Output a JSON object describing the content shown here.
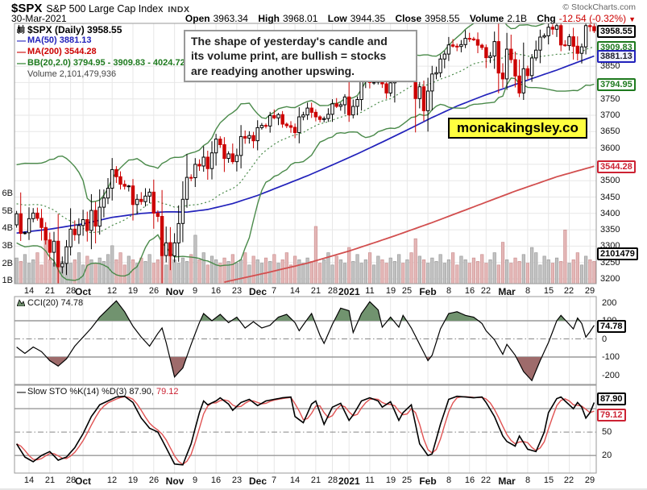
{
  "header": {
    "symbol": "$SPX",
    "name": "S&P 500 Large Cap Index",
    "exchange": "INDX",
    "copyright": "© StockCharts.com",
    "date": "30-Mar-2021",
    "quote": {
      "open_label": "Open",
      "open": "3963.34",
      "high_label": "High",
      "high": "3968.01",
      "low_label": "Low",
      "low": "3944.35",
      "close_label": "Close",
      "close": "3958.55",
      "volume_label": "Volume",
      "volume": "2.1B",
      "chg_label": "Chg",
      "chg": "-12.54 (-0.32%)",
      "down_arrow": "▼"
    }
  },
  "legend": {
    "price": "$SPX (Daily) 3958.55",
    "ma50": "MA(50) 3881.13",
    "ma200": "MA(200) 3544.28",
    "bb": "BB(20,2.0) 3794.95 - 3909.83 - 4024.72",
    "volume": "Volume 2,101,479,936",
    "dash": "—"
  },
  "annotation": {
    "lines": [
      "The shape of yesterday's candle and",
      "its volume print, are bullish = stocks",
      "are readying another upswing."
    ]
  },
  "watermark": "monicakingsley.co",
  "colors": {
    "up_stroke": "#000000",
    "down_body": "#cc0000",
    "ma50": "#2222bb",
    "ma200": "#d24f4f",
    "bb": "#4a8a4a",
    "vol_up": "#c2c2c2",
    "vol_up_edge": "#9a9a9a",
    "vol_down": "#e4b7b7",
    "vol_down_edge": "#cc8f8f",
    "cci_fill_up": "#71936f",
    "cci_fill_down": "#9e6b6b",
    "sto_k": "#000000",
    "sto_d": "#e05252",
    "grid": "#e7e7e7",
    "panel_border": "#999999"
  },
  "chart_data": {
    "type": "candlestick",
    "symbol": "$SPX",
    "timeframe": "daily",
    "date_range": "14-Sep-2020 to 30-Mar-2021 (approx, 140 sessions)",
    "panels": [
      "price+volume+MA50+MA200+BB(20,2.0)",
      "CCI(20)",
      "Slow STO %K(14) %D(3)"
    ],
    "x_tick_labels": [
      {
        "label": "14",
        "day": 3,
        "bold": false
      },
      {
        "label": "21",
        "day": 8,
        "bold": false
      },
      {
        "label": "28",
        "day": 13,
        "bold": false
      },
      {
        "label": "Oct",
        "day": 16,
        "bold": true
      },
      {
        "label": "12",
        "day": 23,
        "bold": false
      },
      {
        "label": "19",
        "day": 28,
        "bold": false
      },
      {
        "label": "26",
        "day": 33,
        "bold": false
      },
      {
        "label": "Nov",
        "day": 38,
        "bold": true
      },
      {
        "label": "9",
        "day": 43,
        "bold": false
      },
      {
        "label": "16",
        "day": 48,
        "bold": false
      },
      {
        "label": "23",
        "day": 53,
        "bold": false
      },
      {
        "label": "Dec",
        "day": 58,
        "bold": true
      },
      {
        "label": "7",
        "day": 62,
        "bold": false
      },
      {
        "label": "14",
        "day": 67,
        "bold": false
      },
      {
        "label": "21",
        "day": 72,
        "bold": false
      },
      {
        "label": "28",
        "day": 76,
        "bold": false
      },
      {
        "label": "2021",
        "day": 80,
        "bold": true
      },
      {
        "label": "11",
        "day": 85,
        "bold": false
      },
      {
        "label": "19",
        "day": 90,
        "bold": false
      },
      {
        "label": "25",
        "day": 94,
        "bold": false
      },
      {
        "label": "Feb",
        "day": 99,
        "bold": true
      },
      {
        "label": "8",
        "day": 104,
        "bold": false
      },
      {
        "label": "16",
        "day": 109,
        "bold": false
      },
      {
        "label": "22",
        "day": 113,
        "bold": false
      },
      {
        "label": "Mar",
        "day": 118,
        "bold": true
      },
      {
        "label": "8",
        "day": 123,
        "bold": false
      },
      {
        "label": "15",
        "day": 128,
        "bold": false
      },
      {
        "label": "22",
        "day": 133,
        "bold": false
      },
      {
        "label": "29",
        "day": 138,
        "bold": false
      }
    ],
    "price_axis": {
      "visible_ticks": [
        3850,
        3750,
        3700,
        3650,
        3600,
        3500,
        3450,
        3400,
        3350,
        3300,
        3250,
        3200
      ],
      "tags": [
        {
          "value": 3958.55,
          "text": "3958.55",
          "style": "black"
        },
        {
          "value": 3909.83,
          "text": "3909.83",
          "style": "green"
        },
        {
          "value": 3881.13,
          "text": "3881.13",
          "style": "blue"
        },
        {
          "value": 3794.95,
          "text": "3794.95",
          "style": "green"
        },
        {
          "value": 3544.28,
          "text": "3544.28",
          "style": "red"
        }
      ]
    },
    "volume_axis": {
      "ticks_b": [
        6,
        5,
        4,
        3,
        2,
        1
      ],
      "tag_text": "2101479",
      "last_volume": 2101479936
    },
    "closes": [
      3399,
      3339,
      3341,
      3384,
      3401,
      3385,
      3357,
      3319,
      3281,
      3315,
      3237,
      3247,
      3298,
      3352,
      3335,
      3363,
      3381,
      3348,
      3409,
      3361,
      3419,
      3447,
      3477,
      3534,
      3512,
      3489,
      3483,
      3484,
      3427,
      3443,
      3436,
      3453,
      3465,
      3401,
      3391,
      3271,
      3310,
      3270,
      3310,
      3369,
      3443,
      3510,
      3509,
      3550,
      3545,
      3572,
      3537,
      3585,
      3627,
      3610,
      3568,
      3582,
      3558,
      3577,
      3635,
      3630,
      3638,
      3622,
      3662,
      3669,
      3667,
      3699,
      3692,
      3702,
      3673,
      3668,
      3663,
      3647,
      3695,
      3701,
      3722,
      3709,
      3695,
      3687,
      3690,
      3703,
      3735,
      3727,
      3732,
      3756,
      3701,
      3727,
      3748,
      3804,
      3825,
      3800,
      3801,
      3810,
      3796,
      3768,
      3799,
      3852,
      3853,
      3841,
      3855,
      3850,
      3751,
      3787,
      3714,
      3774,
      3826,
      3830,
      3872,
      3887,
      3915,
      3911,
      3910,
      3916,
      3935,
      3933,
      3931,
      3914,
      3907,
      3876,
      3881,
      3925,
      3829,
      3811,
      3902,
      3870,
      3820,
      3768,
      3842,
      3821,
      3875,
      3899,
      3939,
      3943,
      3969,
      3963,
      3974,
      3915,
      3913,
      3940,
      3911,
      3889,
      3909,
      3974,
      3971,
      3958.55
    ],
    "volumes_b": [
      2.3,
      2.1,
      2.5,
      2.0,
      2.2,
      2.6,
      1.9,
      4.0,
      2.2,
      2.0,
      2.3,
      2.1,
      2.5,
      2.0,
      2.2,
      2.6,
      1.9,
      2.4,
      2.2,
      2.0,
      2.3,
      2.1,
      2.5,
      3.0,
      2.2,
      2.6,
      1.9,
      2.4,
      2.2,
      2.0,
      2.3,
      2.1,
      2.5,
      2.0,
      2.2,
      2.6,
      1.9,
      3.2,
      2.2,
      2.0,
      2.3,
      2.1,
      2.5,
      3.6,
      2.2,
      2.6,
      1.9,
      2.4,
      2.2,
      2.0,
      2.3,
      2.1,
      2.5,
      2.0,
      2.2,
      2.6,
      1.9,
      2.4,
      2.2,
      2.0,
      2.3,
      2.1,
      2.5,
      2.0,
      2.2,
      2.6,
      1.9,
      2.4,
      2.2,
      2.0,
      2.3,
      2.1,
      4.1,
      2.0,
      2.2,
      2.6,
      1.9,
      2.4,
      2.2,
      2.0,
      2.9,
      2.1,
      2.5,
      2.0,
      2.2,
      2.6,
      1.9,
      2.4,
      2.2,
      2.0,
      2.3,
      2.1,
      2.5,
      2.0,
      2.2,
      2.6,
      3.4,
      2.4,
      2.2,
      2.0,
      2.3,
      2.1,
      2.5,
      2.0,
      2.2,
      2.6,
      1.9,
      2.4,
      2.2,
      2.0,
      2.3,
      2.1,
      2.5,
      2.0,
      2.2,
      2.6,
      1.9,
      3.2,
      2.2,
      2.0,
      2.3,
      2.1,
      2.5,
      2.0,
      2.9,
      2.6,
      1.9,
      2.4,
      2.2,
      2.0,
      2.3,
      2.1,
      3.9,
      2.0,
      2.2,
      2.6,
      1.9,
      2.4,
      2.2,
      2.1
    ],
    "prehistory_closes": [
      3360,
      3380,
      3375,
      3373,
      3382,
      3390,
      3385,
      3397,
      3402,
      3415,
      3425,
      3443,
      3465,
      3478,
      3484,
      3500,
      3526,
      3580,
      3455,
      3332
    ],
    "ma50_anchors": [
      [
        0,
        3340
      ],
      [
        8,
        3352
      ],
      [
        16,
        3368
      ],
      [
        23,
        3388
      ],
      [
        30,
        3400
      ],
      [
        36,
        3405
      ],
      [
        41,
        3404
      ],
      [
        46,
        3412
      ],
      [
        52,
        3430
      ],
      [
        58,
        3455
      ],
      [
        64,
        3485
      ],
      [
        70,
        3515
      ],
      [
        76,
        3548
      ],
      [
        82,
        3582
      ],
      [
        88,
        3618
      ],
      [
        94,
        3655
      ],
      [
        100,
        3693
      ],
      [
        106,
        3728
      ],
      [
        112,
        3758
      ],
      [
        118,
        3785
      ],
      [
        124,
        3812
      ],
      [
        130,
        3838
      ],
      [
        135,
        3862
      ],
      [
        139,
        3881.13
      ]
    ],
    "ma200_anchors": [
      [
        50,
        3190
      ],
      [
        60,
        3218
      ],
      [
        70,
        3248
      ],
      [
        80,
        3285
      ],
      [
        90,
        3327
      ],
      [
        100,
        3372
      ],
      [
        110,
        3420
      ],
      [
        120,
        3468
      ],
      [
        130,
        3512
      ],
      [
        139,
        3544.28
      ]
    ],
    "bollinger": {
      "period": 20,
      "stddev": 2.0,
      "last_lower": 3794.95,
      "last_mid": 3909.83,
      "last_upper": 4024.72
    },
    "cci": {
      "label": "CCI(20) 74.78",
      "last": 74.78,
      "axis_ticks": [
        200,
        100,
        0,
        -100,
        -200
      ],
      "points": [
        [
          0,
          -45
        ],
        [
          2,
          -80
        ],
        [
          4,
          -45
        ],
        [
          6,
          -70
        ],
        [
          8,
          -120
        ],
        [
          10,
          -150
        ],
        [
          12,
          -110
        ],
        [
          14,
          -40
        ],
        [
          16,
          10
        ],
        [
          18,
          60
        ],
        [
          20,
          120
        ],
        [
          22,
          165
        ],
        [
          24,
          210
        ],
        [
          26,
          150
        ],
        [
          28,
          70
        ],
        [
          30,
          10
        ],
        [
          32,
          -40
        ],
        [
          34,
          30
        ],
        [
          35,
          60
        ],
        [
          36,
          -20
        ],
        [
          38,
          -210
        ],
        [
          40,
          -160
        ],
        [
          42,
          -30
        ],
        [
          44,
          90
        ],
        [
          45,
          140
        ],
        [
          47,
          100
        ],
        [
          49,
          135
        ],
        [
          51,
          90
        ],
        [
          53,
          120
        ],
        [
          55,
          60
        ],
        [
          57,
          95
        ],
        [
          59,
          60
        ],
        [
          61,
          75
        ],
        [
          63,
          120
        ],
        [
          65,
          135
        ],
        [
          67,
          90
        ],
        [
          68,
          45
        ],
        [
          70,
          110
        ],
        [
          71,
          140
        ],
        [
          73,
          20
        ],
        [
          74,
          -25
        ],
        [
          76,
          80
        ],
        [
          78,
          170
        ],
        [
          80,
          155
        ],
        [
          81,
          35
        ],
        [
          83,
          140
        ],
        [
          85,
          205
        ],
        [
          87,
          160
        ],
        [
          88,
          65
        ],
        [
          90,
          120
        ],
        [
          92,
          65
        ],
        [
          93,
          130
        ],
        [
          95,
          60
        ],
        [
          97,
          -30
        ],
        [
          99,
          -120
        ],
        [
          100,
          -90
        ],
        [
          102,
          55
        ],
        [
          104,
          140
        ],
        [
          106,
          150
        ],
        [
          108,
          130
        ],
        [
          110,
          120
        ],
        [
          112,
          85
        ],
        [
          113,
          45
        ],
        [
          115,
          -5
        ],
        [
          117,
          -85
        ],
        [
          118,
          -30
        ],
        [
          120,
          -90
        ],
        [
          122,
          -180
        ],
        [
          124,
          -230
        ],
        [
          126,
          -120
        ],
        [
          128,
          -20
        ],
        [
          130,
          100
        ],
        [
          131,
          130
        ],
        [
          133,
          80
        ],
        [
          134,
          55
        ],
        [
          135,
          115
        ],
        [
          136,
          85
        ],
        [
          137,
          10
        ],
        [
          138,
          40
        ],
        [
          139,
          74.78
        ]
      ]
    },
    "sto": {
      "legend_main": "Slow STO %K(14) %D(3) 87.90,",
      "legend_d": "79.12",
      "k_last": 87.9,
      "d_last": 79.12,
      "axis_ticks": [
        50,
        20
      ],
      "k_points": [
        [
          0,
          35
        ],
        [
          2,
          18
        ],
        [
          4,
          12
        ],
        [
          6,
          20
        ],
        [
          8,
          25
        ],
        [
          10,
          14
        ],
        [
          12,
          18
        ],
        [
          14,
          30
        ],
        [
          16,
          48
        ],
        [
          18,
          70
        ],
        [
          20,
          85
        ],
        [
          22,
          90
        ],
        [
          24,
          95
        ],
        [
          26,
          96
        ],
        [
          28,
          88
        ],
        [
          30,
          68
        ],
        [
          32,
          55
        ],
        [
          34,
          50
        ],
        [
          36,
          30
        ],
        [
          38,
          9
        ],
        [
          40,
          8
        ],
        [
          42,
          35
        ],
        [
          44,
          75
        ],
        [
          45,
          90
        ],
        [
          46,
          85
        ],
        [
          48,
          90
        ],
        [
          49,
          94
        ],
        [
          51,
          86
        ],
        [
          52,
          78
        ],
        [
          54,
          88
        ],
        [
          56,
          92
        ],
        [
          58,
          84
        ],
        [
          60,
          90
        ],
        [
          62,
          92
        ],
        [
          64,
          94
        ],
        [
          66,
          95
        ],
        [
          67,
          70
        ],
        [
          69,
          62
        ],
        [
          71,
          86
        ],
        [
          72,
          90
        ],
        [
          74,
          60
        ],
        [
          76,
          82
        ],
        [
          78,
          87
        ],
        [
          80,
          65
        ],
        [
          81,
          72
        ],
        [
          83,
          90
        ],
        [
          85,
          94
        ],
        [
          87,
          90
        ],
        [
          88,
          82
        ],
        [
          90,
          89
        ],
        [
          92,
          65
        ],
        [
          93,
          75
        ],
        [
          95,
          85
        ],
        [
          96,
          60
        ],
        [
          97,
          35
        ],
        [
          99,
          20
        ],
        [
          100,
          22
        ],
        [
          102,
          60
        ],
        [
          104,
          92
        ],
        [
          106,
          96
        ],
        [
          108,
          95
        ],
        [
          110,
          94
        ],
        [
          112,
          95
        ],
        [
          113,
          88
        ],
        [
          115,
          70
        ],
        [
          117,
          45
        ],
        [
          118,
          38
        ],
        [
          120,
          32
        ],
        [
          121,
          45
        ],
        [
          123,
          28
        ],
        [
          125,
          25
        ],
        [
          127,
          50
        ],
        [
          128,
          75
        ],
        [
          130,
          93
        ],
        [
          131,
          95
        ],
        [
          133,
          85
        ],
        [
          134,
          80
        ],
        [
          135,
          88
        ],
        [
          136,
          82
        ],
        [
          137,
          68
        ],
        [
          138,
          75
        ],
        [
          139,
          87.9
        ]
      ]
    }
  }
}
